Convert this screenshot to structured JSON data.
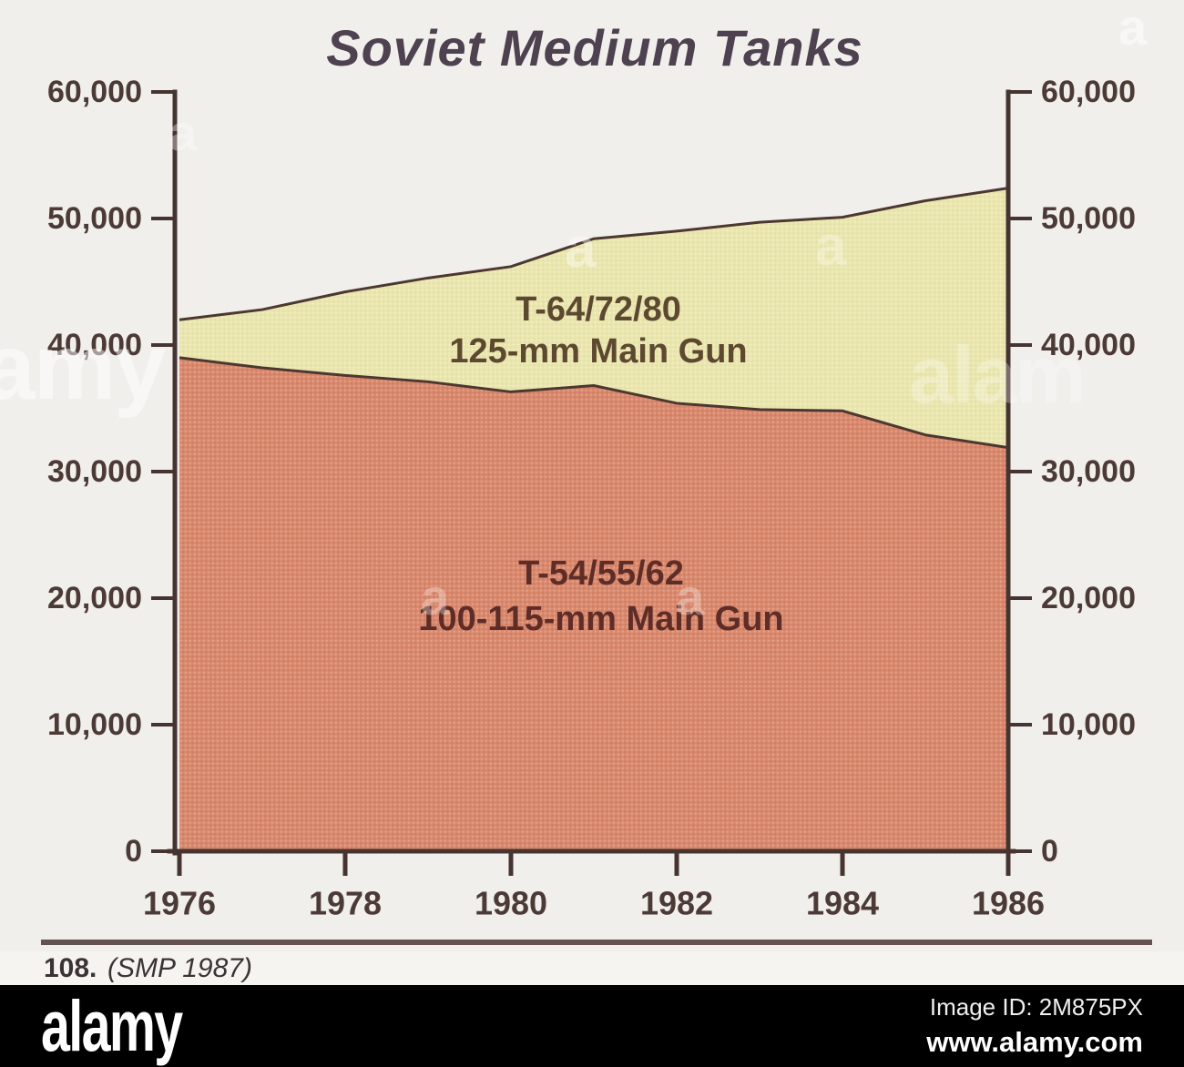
{
  "chart_data": {
    "type": "area",
    "stacked": true,
    "title": "Soviet Medium Tanks",
    "x": [
      1976,
      1977,
      1978,
      1979,
      1980,
      1981,
      1982,
      1983,
      1984,
      1985,
      1986
    ],
    "series": [
      {
        "name": "T-54/55/62",
        "label_line1": "T-54/55/62",
        "label_line2": "100-115-mm Main Gun",
        "color": "#d8896e",
        "values": [
          39000,
          38200,
          37600,
          37100,
          36300,
          36800,
          35400,
          34900,
          34800,
          32900,
          31900
        ]
      },
      {
        "name": "T-64/72/80",
        "label_line1": "T-64/72/80",
        "label_line2": "125-mm Main Gun",
        "color": "#eae6b0",
        "values": [
          3000,
          4600,
          6600,
          8200,
          9900,
          11600,
          13600,
          14800,
          15300,
          18500,
          20500
        ]
      }
    ],
    "totals": [
      42000,
      42800,
      44200,
      45300,
      46200,
      48400,
      49000,
      49700,
      50100,
      51400,
      52400
    ],
    "y_axis": {
      "min": 0,
      "max": 60000,
      "step": 10000,
      "tick_labels": [
        "0",
        "10,000",
        "20,000",
        "30,000",
        "40,000",
        "50,000",
        "60,000"
      ],
      "mirrored_right": true
    },
    "x_axis": {
      "tick_years": [
        1976,
        1978,
        1980,
        1982,
        1984,
        1986
      ],
      "tick_labels": [
        "1976",
        "1978",
        "1980",
        "1982",
        "1984",
        "1986"
      ]
    },
    "line_color": "#4c3831",
    "grid": false,
    "legend_position": "inside-areas"
  },
  "caption": {
    "number": "108.",
    "source": "(SMP 1987)"
  },
  "footer": {
    "logo": "alamy",
    "image_id": "Image ID: 2M875PX",
    "url": "www.alamy.com"
  },
  "watermarks": {
    "items": [
      {
        "text": "amy"
      },
      {
        "text": "a"
      },
      {
        "text": "a"
      },
      {
        "text": "alam"
      },
      {
        "text": "a"
      },
      {
        "text": "a"
      },
      {
        "text": "a"
      },
      {
        "text": "a"
      }
    ]
  }
}
